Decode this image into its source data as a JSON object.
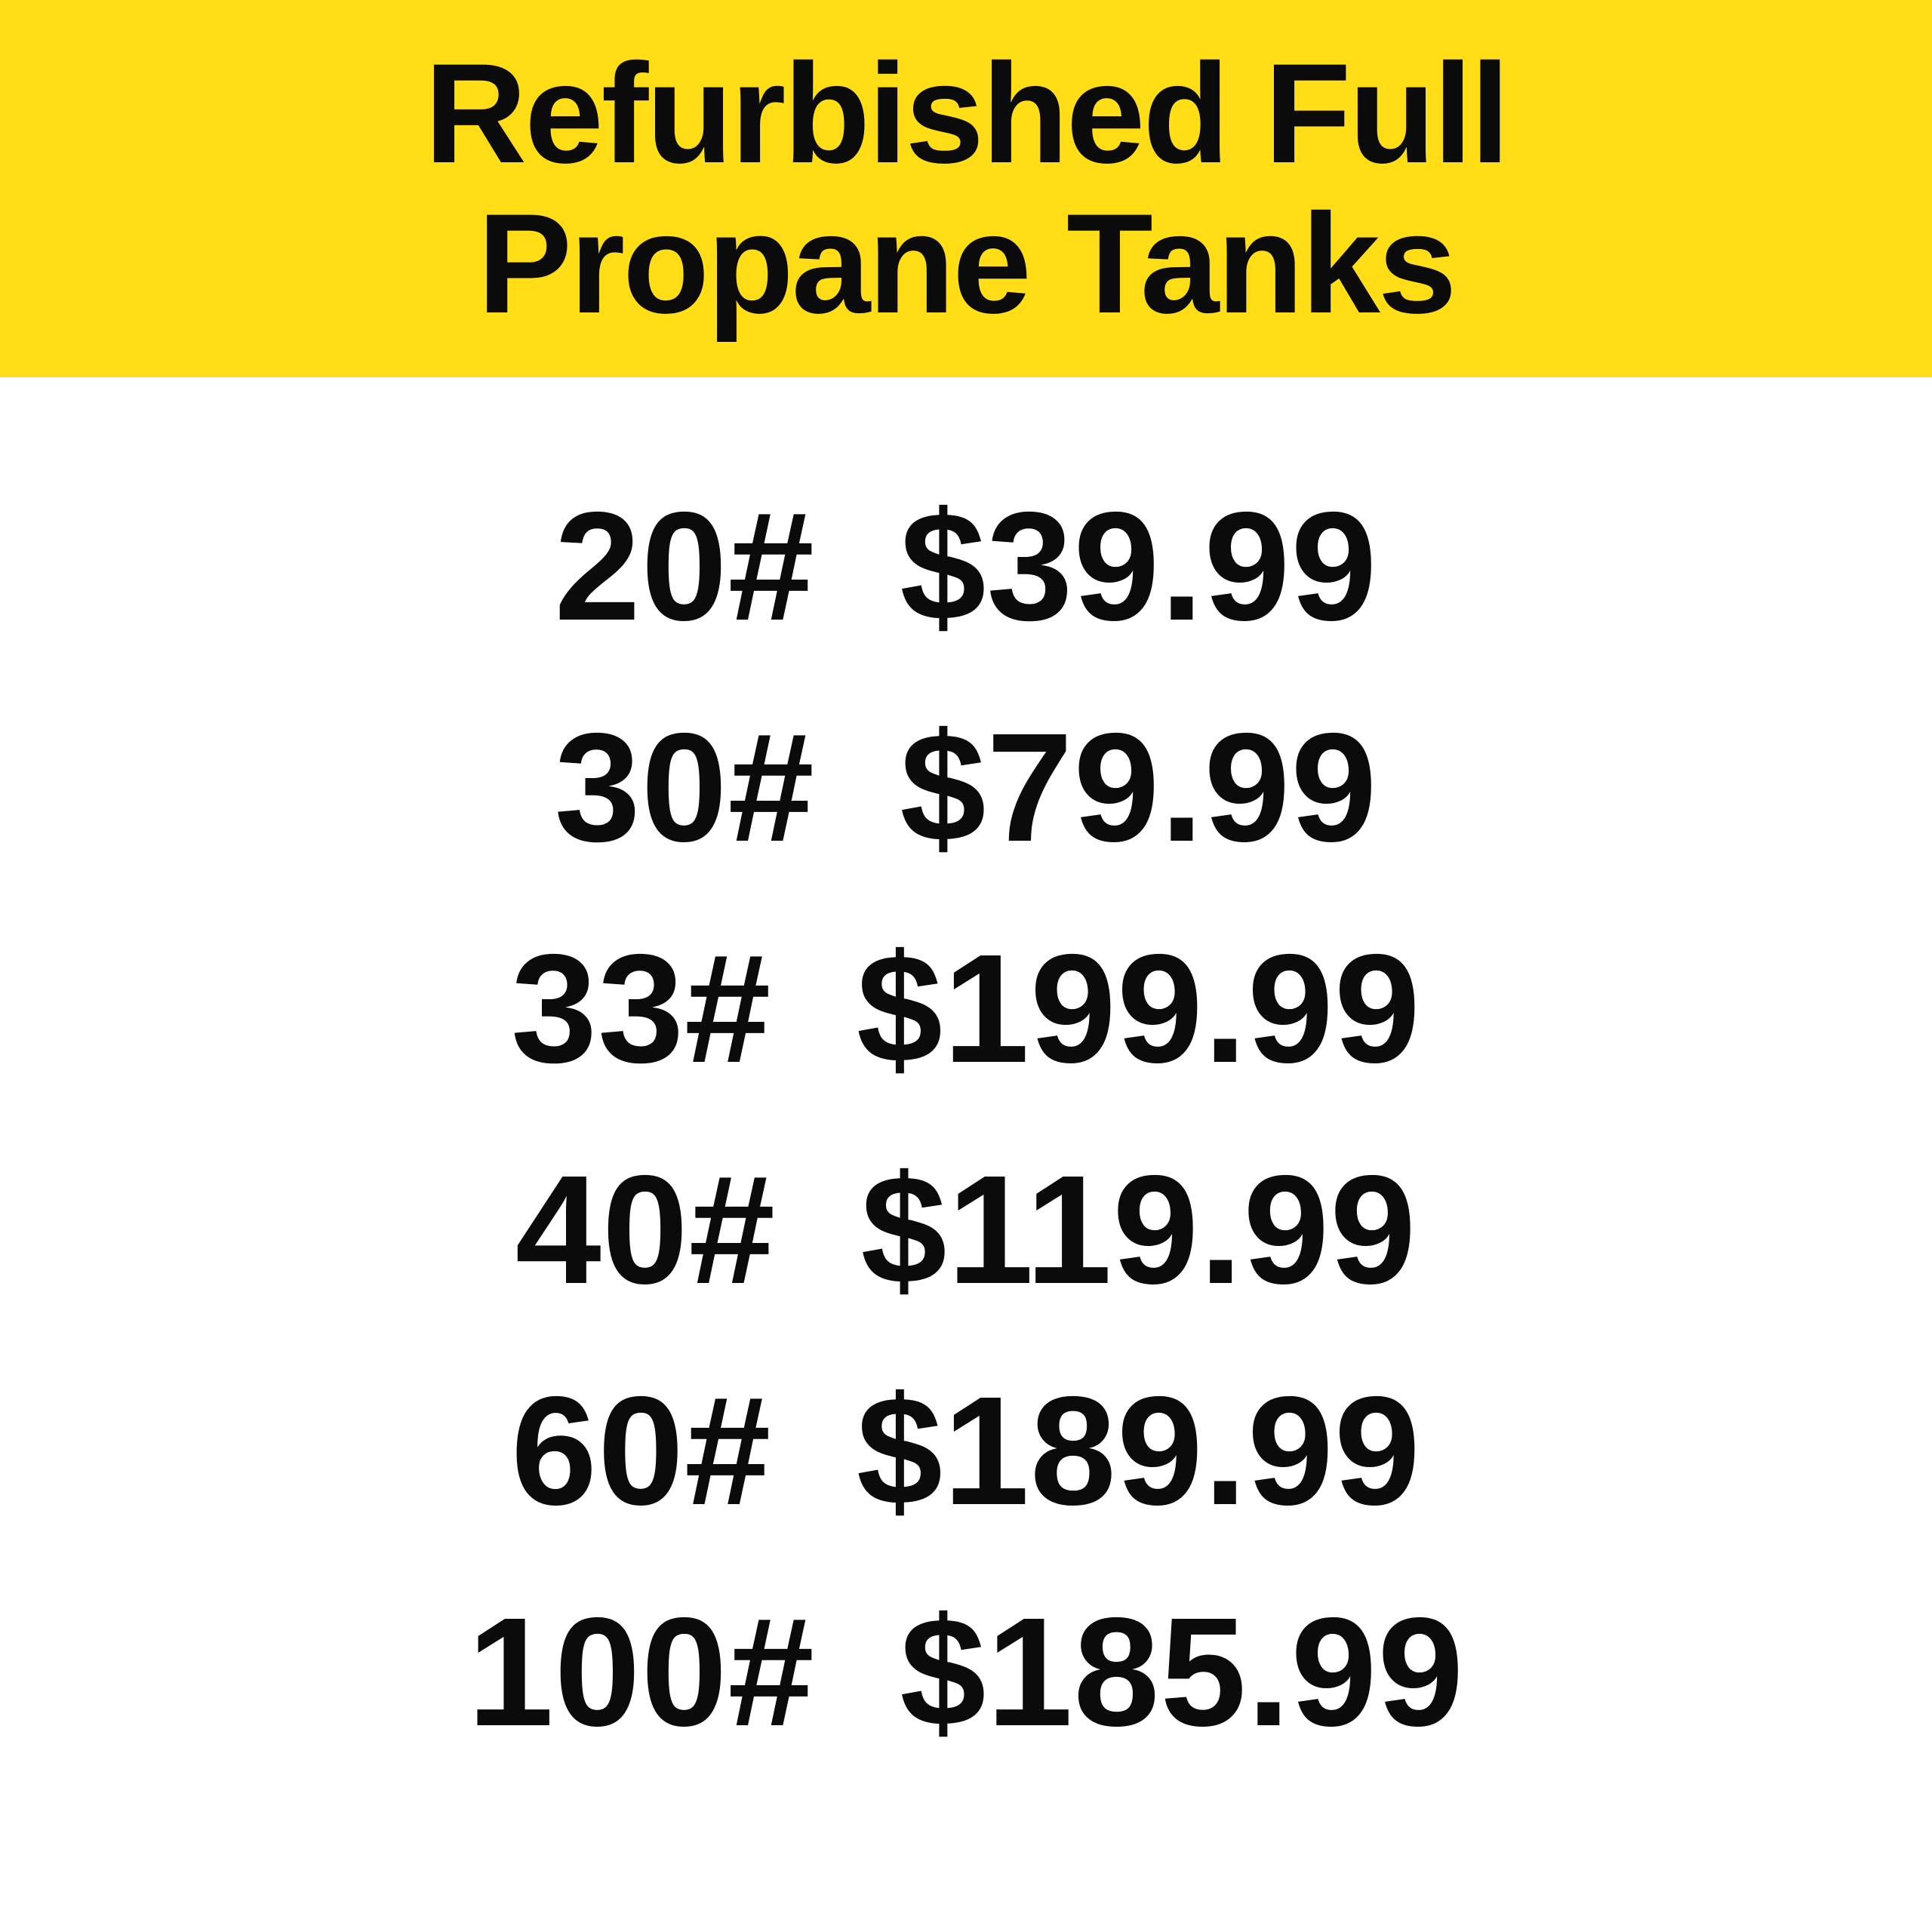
{
  "banner": {
    "title_line1": "Refurbished Full",
    "title_line2": "Propane Tanks",
    "background_color": "#FFDE17",
    "text_color": "#0B0B0B"
  },
  "price_list": {
    "rows": [
      {
        "size": "20#",
        "price": "$39.99"
      },
      {
        "size": "30#",
        "price": "$79.99"
      },
      {
        "size": "33#",
        "price": "$199.99"
      },
      {
        "size": "40#",
        "price": "$119.99"
      },
      {
        "size": "60#",
        "price": "$189.99"
      },
      {
        "size": "100#",
        "price": "$185.99"
      }
    ]
  },
  "colors": {
    "page_background": "#FFFFFF",
    "banner_yellow": "#FFDE17",
    "text_black": "#0B0B0B"
  }
}
